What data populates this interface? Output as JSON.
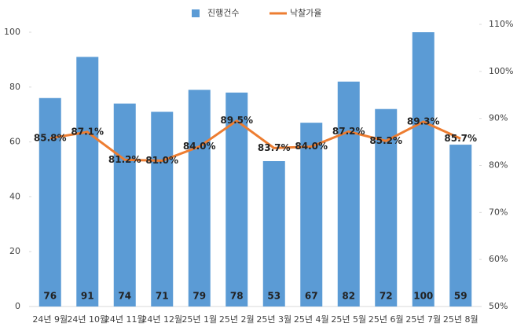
{
  "chart_data": {
    "type": "bar",
    "categories": [
      "24년 9월",
      "24년 10월",
      "24년 11월",
      "24년 12월",
      "25년 1월",
      "25년 2월",
      "25년 3월",
      "25년 4월",
      "25년 5월",
      "25년 6월",
      "25년 7월",
      "25년 8월"
    ],
    "series": [
      {
        "name": "진행건수",
        "type": "bar",
        "axis": "y",
        "color": "#5b9bd5",
        "values": [
          76,
          91,
          74,
          71,
          79,
          78,
          53,
          67,
          82,
          72,
          100,
          59
        ]
      },
      {
        "name": "낙찰가율",
        "type": "line",
        "axis": "y2",
        "color": "#ed7d31",
        "values": [
          85.8,
          87.1,
          81.2,
          81.0,
          84.0,
          89.5,
          83.7,
          84.0,
          87.2,
          85.2,
          89.3,
          85.7
        ],
        "value_labels": [
          "85.8%",
          "87.1%",
          "81.2%",
          "81.0%",
          "84.0%",
          "89.5%",
          "83.7%",
          "84.0%",
          "87.2%",
          "85.2%",
          "89.3%",
          "85.7%"
        ]
      }
    ],
    "ylim": [
      0,
      100
    ],
    "yticks": [
      0,
      20,
      40,
      60,
      80,
      100
    ],
    "y2lim": [
      50,
      110
    ],
    "y2ticks": [
      {
        "value": 50,
        "label": "50%"
      },
      {
        "value": 60,
        "label": "60%"
      },
      {
        "value": 70,
        "label": "70%"
      },
      {
        "value": 80,
        "label": "80%"
      },
      {
        "value": 90,
        "label": "90%"
      },
      {
        "value": 100,
        "label": "100%"
      },
      {
        "value": 110,
        "label": "110%"
      }
    ],
    "grid": false,
    "legend": "top"
  }
}
